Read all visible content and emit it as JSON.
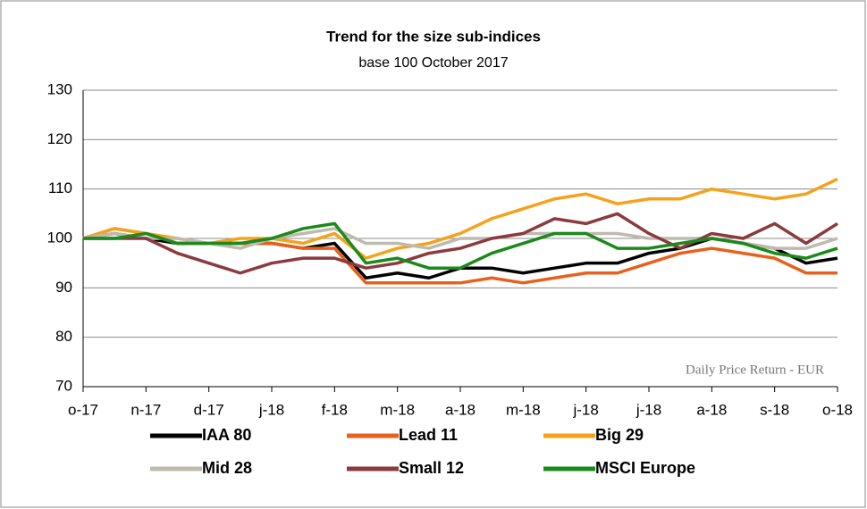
{
  "chart_data": {
    "type": "line",
    "title": "Trend for the size sub-indices",
    "subtitle": "base 100 October 2017",
    "annotation": "Daily Price Return - EUR",
    "categories": [
      "o-17",
      null,
      "n-17",
      null,
      "d-17",
      null,
      "j-18",
      null,
      "f-18",
      null,
      "m-18",
      null,
      "a-18",
      null,
      "m-18",
      null,
      "j-18",
      null,
      "j-18",
      null,
      "a-18",
      null,
      "s-18",
      null,
      "o-18"
    ],
    "series": [
      {
        "name": "IAA 80",
        "color": "#000000",
        "values": [
          100,
          101,
          100,
          99,
          99,
          99,
          99,
          98,
          99,
          92,
          93,
          92,
          94,
          94,
          93,
          94,
          95,
          95,
          97,
          98,
          100,
          99,
          98,
          95,
          96
        ]
      },
      {
        "name": "Lead 11",
        "color": "#e8601c",
        "values": [
          100,
          102,
          101,
          99,
          99,
          99,
          99,
          98,
          98,
          91,
          91,
          91,
          91,
          92,
          91,
          92,
          93,
          93,
          95,
          97,
          98,
          97,
          96,
          93,
          93
        ]
      },
      {
        "name": "Big 29",
        "color": "#f5a21b",
        "values": [
          100,
          102,
          101,
          100,
          99,
          100,
          100,
          99,
          101,
          96,
          98,
          99,
          101,
          104,
          106,
          108,
          109,
          107,
          108,
          108,
          110,
          109,
          108,
          109,
          112
        ]
      },
      {
        "name": "Mid 28",
        "color": "#bfbab0",
        "values": [
          100,
          101,
          100,
          100,
          99,
          98,
          100,
          101,
          102,
          99,
          99,
          98,
          100,
          100,
          101,
          101,
          101,
          101,
          100,
          100,
          100,
          99,
          98,
          98,
          100
        ]
      },
      {
        "name": "Small 12",
        "color": "#8b3a3f",
        "values": [
          100,
          100,
          100,
          97,
          95,
          93,
          95,
          96,
          96,
          94,
          95,
          97,
          98,
          100,
          101,
          104,
          103,
          105,
          101,
          98,
          101,
          100,
          103,
          99,
          103
        ]
      },
      {
        "name": "MSCI Europe",
        "color": "#1a8a1a",
        "values": [
          100,
          100,
          101,
          99,
          99,
          99,
          100,
          102,
          103,
          95,
          96,
          94,
          94,
          97,
          99,
          101,
          101,
          98,
          98,
          99,
          100,
          99,
          97,
          96,
          98
        ]
      }
    ],
    "ylim": [
      70,
      130
    ],
    "yticks": [
      70,
      80,
      90,
      100,
      110,
      120,
      130
    ],
    "grid": true
  }
}
